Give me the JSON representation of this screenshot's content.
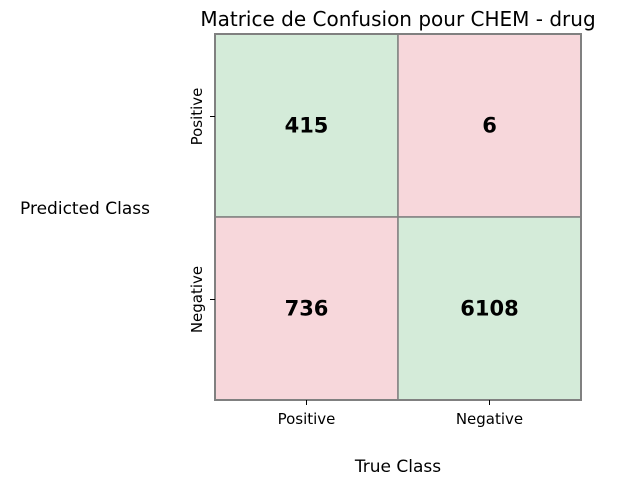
{
  "chart_data": {
    "type": "heatmap",
    "title": "Matrice de Confusion pour CHEM - drug",
    "xlabel": "True Class",
    "ylabel": "Predicted Class",
    "x_categories": [
      "Positive",
      "Negative"
    ],
    "y_categories": [
      "Positive",
      "Negative"
    ],
    "values": [
      [
        415,
        6
      ],
      [
        736,
        6108
      ]
    ],
    "cell_colors": [
      [
        "#d4ebd9",
        "#f7d7db"
      ],
      [
        "#f7d7db",
        "#d4ebd9"
      ]
    ],
    "border_color": "#808080",
    "grid": true
  }
}
